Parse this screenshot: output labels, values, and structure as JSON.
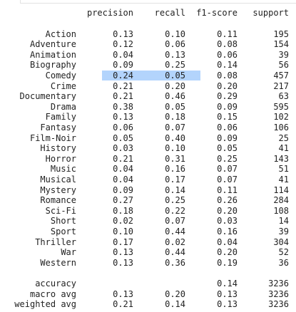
{
  "headers": [
    "precision",
    "recall",
    "f1-score",
    "support"
  ],
  "rows": [
    {
      "label": "Action",
      "precision": "0.13",
      "recall": "0.10",
      "f1": "0.11",
      "support": "195"
    },
    {
      "label": "Adventure",
      "precision": "0.12",
      "recall": "0.06",
      "f1": "0.08",
      "support": "154"
    },
    {
      "label": "Animation",
      "precision": "0.04",
      "recall": "0.13",
      "f1": "0.06",
      "support": "39"
    },
    {
      "label": "Biography",
      "precision": "0.09",
      "recall": "0.25",
      "f1": "0.14",
      "support": "56"
    },
    {
      "label": "Comedy",
      "precision": "0.24",
      "recall": "0.05",
      "f1": "0.08",
      "support": "457"
    },
    {
      "label": "Crime",
      "precision": "0.21",
      "recall": "0.20",
      "f1": "0.20",
      "support": "217"
    },
    {
      "label": "Documentary",
      "precision": "0.21",
      "recall": "0.46",
      "f1": "0.29",
      "support": "63"
    },
    {
      "label": "Drama",
      "precision": "0.38",
      "recall": "0.05",
      "f1": "0.09",
      "support": "595"
    },
    {
      "label": "Family",
      "precision": "0.13",
      "recall": "0.18",
      "f1": "0.15",
      "support": "102"
    },
    {
      "label": "Fantasy",
      "precision": "0.06",
      "recall": "0.07",
      "f1": "0.06",
      "support": "106"
    },
    {
      "label": "Film-Noir",
      "precision": "0.05",
      "recall": "0.40",
      "f1": "0.09",
      "support": "25"
    },
    {
      "label": "History",
      "precision": "0.03",
      "recall": "0.10",
      "f1": "0.05",
      "support": "41"
    },
    {
      "label": "Horror",
      "precision": "0.21",
      "recall": "0.31",
      "f1": "0.25",
      "support": "143"
    },
    {
      "label": "Music",
      "precision": "0.04",
      "recall": "0.16",
      "f1": "0.07",
      "support": "51"
    },
    {
      "label": "Musical",
      "precision": "0.04",
      "recall": "0.17",
      "f1": "0.07",
      "support": "41"
    },
    {
      "label": "Mystery",
      "precision": "0.09",
      "recall": "0.14",
      "f1": "0.11",
      "support": "114"
    },
    {
      "label": "Romance",
      "precision": "0.27",
      "recall": "0.25",
      "f1": "0.26",
      "support": "284"
    },
    {
      "label": "Sci-Fi",
      "precision": "0.18",
      "recall": "0.22",
      "f1": "0.20",
      "support": "108"
    },
    {
      "label": "Short",
      "precision": "0.02",
      "recall": "0.07",
      "f1": "0.03",
      "support": "14"
    },
    {
      "label": "Sport",
      "precision": "0.10",
      "recall": "0.44",
      "f1": "0.16",
      "support": "39"
    },
    {
      "label": "Thriller",
      "precision": "0.17",
      "recall": "0.02",
      "f1": "0.04",
      "support": "304"
    },
    {
      "label": "War",
      "precision": "0.13",
      "recall": "0.44",
      "f1": "0.20",
      "support": "52"
    },
    {
      "label": "Western",
      "precision": "0.13",
      "recall": "0.36",
      "f1": "0.19",
      "support": "36"
    }
  ],
  "summary": [
    {
      "label": "accuracy",
      "precision": "",
      "recall": "",
      "f1": "0.14",
      "support": "3236"
    },
    {
      "label": "macro avg",
      "precision": "0.13",
      "recall": "0.20",
      "f1": "0.13",
      "support": "3236"
    },
    {
      "label": "weighted avg",
      "precision": "0.21",
      "recall": "0.14",
      "f1": "0.13",
      "support": "3236"
    }
  ],
  "selection": {
    "row_label": "Comedy",
    "color": "#b3d4fc"
  }
}
